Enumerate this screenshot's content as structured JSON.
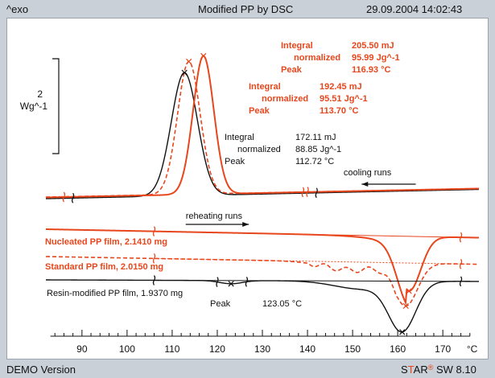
{
  "header": {
    "left": "^exo",
    "title": "Modified PP by DSC",
    "datetime": "29.09.2004 14:02:43"
  },
  "footer": {
    "left": "DEMO Version",
    "brand_s": "S",
    "brand_t": "T",
    "brand_ar": "AR",
    "brand_reg": "®",
    "brand_sw": " SW 8.10"
  },
  "colors": {
    "red": "#e8461c",
    "black": "#111111"
  },
  "chart_data": {
    "type": "line",
    "xlabel": "°C",
    "xlim": [
      82,
      178
    ],
    "xticks": [
      90,
      100,
      110,
      120,
      130,
      140,
      150,
      160,
      170
    ],
    "scale_bar": {
      "value": "2",
      "unit": "Wg^-1"
    },
    "direction": "^exo",
    "groups": [
      {
        "label": "cooling runs"
      },
      {
        "label": "reheating runs"
      }
    ],
    "series": [
      {
        "name": "Nucleated PP film, 2.1410 mg",
        "style": "solid",
        "color": "#e8461c",
        "cooling_peak_c": 116.93,
        "cooling_integral": {
          "integral": "205.50 mJ",
          "normalized": "95.99 Jg^-1",
          "peak": "116.93 °C"
        },
        "heating_peak_c": 162.5
      },
      {
        "name": "Standard PP film, 2.0150 mg",
        "style": "dashed",
        "color": "#e8461c",
        "cooling_peak_c": 113.7,
        "cooling_integral": {
          "integral": "192.45 mJ",
          "normalized": "95.51 Jg^-1",
          "peak": "113.70 °C"
        },
        "heating_peak_c": 161.8
      },
      {
        "name": "Resin-modified PP film, 1.9370 mg",
        "style": "solid",
        "color": "#111111",
        "cooling_peak_c": 112.72,
        "cooling_integral": {
          "integral": "172.11 mJ",
          "normalized": "88.85 Jg^-1",
          "peak": "112.72 °C"
        },
        "heating_peak_c": 161.0,
        "heating_small_peak": {
          "label": "Peak",
          "value": "123.05 °C"
        }
      }
    ],
    "labels": {
      "integral": "Integral",
      "normalized": "normalized",
      "peak": "Peak"
    }
  }
}
